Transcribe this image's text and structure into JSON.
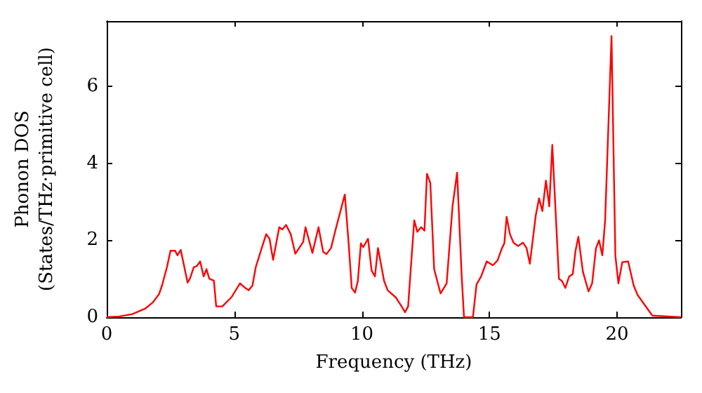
{
  "chart_data": {
    "type": "line",
    "xlabel": "Frequency (THz)",
    "ylabel": "Phonon DOS\n(States/THz·primitive cell)",
    "xlim": [
      0,
      22.5
    ],
    "ylim": [
      0,
      7.7
    ],
    "xticks": [
      0,
      5,
      10,
      15,
      20
    ],
    "yticks": [
      0,
      2,
      4,
      6
    ],
    "grid": false,
    "marker": "none",
    "line_style": "solid",
    "series": [
      {
        "color": "#ff0000",
        "x": [
          0,
          0.5,
          1.0,
          1.5,
          1.8,
          2.05,
          2.17,
          2.36,
          2.5,
          2.68,
          2.77,
          2.9,
          3.17,
          3.26,
          3.41,
          3.53,
          3.66,
          3.8,
          3.91,
          4.02,
          4.2,
          4.29,
          4.53,
          4.89,
          5.22,
          5.43,
          5.56,
          5.71,
          5.84,
          6.07,
          6.25,
          6.38,
          6.52,
          6.76,
          6.88,
          7.03,
          7.21,
          7.39,
          7.7,
          7.79,
          8.06,
          8.3,
          8.48,
          8.61,
          8.79,
          8.97,
          9.33,
          9.48,
          9.6,
          9.73,
          9.84,
          9.96,
          10.05,
          10.24,
          10.38,
          10.51,
          10.63,
          10.87,
          11.01,
          11.32,
          11.5,
          11.69,
          11.81,
          12.05,
          12.17,
          12.32,
          12.45,
          12.55,
          12.68,
          12.83,
          13.08,
          13.32,
          13.55,
          13.73,
          13.91,
          14.0,
          14.35,
          14.49,
          14.67,
          14.89,
          15.13,
          15.31,
          15.49,
          15.58,
          15.67,
          15.8,
          15.94,
          16.12,
          16.31,
          16.45,
          16.58,
          16.81,
          16.94,
          17.07,
          17.21,
          17.34,
          17.46,
          17.57,
          17.72,
          17.84,
          17.97,
          18.12,
          18.26,
          18.37,
          18.48,
          18.66,
          18.88,
          19.02,
          19.17,
          19.29,
          19.42,
          19.53,
          19.78,
          19.93,
          20.05,
          20.2,
          20.43,
          20.65,
          20.8,
          21.38,
          22.5
        ],
        "values": [
          0,
          0.02,
          0.08,
          0.22,
          0.38,
          0.6,
          0.83,
          1.3,
          1.73,
          1.73,
          1.61,
          1.75,
          0.9,
          1.0,
          1.3,
          1.33,
          1.45,
          1.06,
          1.25,
          1.0,
          0.95,
          0.28,
          0.28,
          0.52,
          0.88,
          0.76,
          0.7,
          0.82,
          1.3,
          1.79,
          2.16,
          2.04,
          1.49,
          2.34,
          2.28,
          2.4,
          2.16,
          1.65,
          1.96,
          2.34,
          1.67,
          2.34,
          1.7,
          1.64,
          1.8,
          2.28,
          3.19,
          1.92,
          0.76,
          0.64,
          0.94,
          1.92,
          1.82,
          2.04,
          1.21,
          1.06,
          1.8,
          0.94,
          0.7,
          0.52,
          0.34,
          0.13,
          0.28,
          2.52,
          2.22,
          2.34,
          2.25,
          3.73,
          3.49,
          1.25,
          0.62,
          0.88,
          2.88,
          3.76,
          1.06,
          0,
          0,
          0.85,
          1.06,
          1.45,
          1.35,
          1.47,
          1.8,
          1.92,
          2.61,
          2.16,
          1.94,
          1.85,
          1.94,
          1.8,
          1.39,
          2.64,
          3.09,
          2.76,
          3.55,
          2.88,
          4.48,
          3.0,
          1.0,
          0.94,
          0.76,
          1.06,
          1.12,
          1.73,
          2.09,
          1.18,
          0.67,
          0.88,
          1.79,
          2.0,
          1.61,
          2.52,
          7.31,
          1.61,
          0.88,
          1.43,
          1.45,
          0.82,
          0.58,
          0.04,
          0
        ]
      }
    ]
  }
}
